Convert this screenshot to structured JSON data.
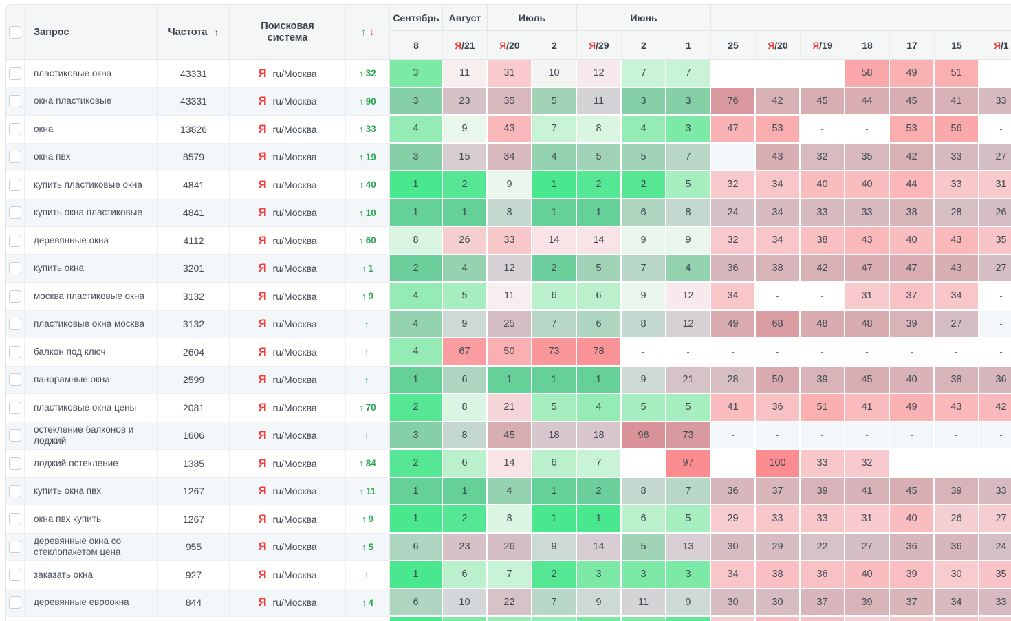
{
  "icons": {
    "yandex": "Я",
    "sort_asc": "↑",
    "arrow_up": "↑",
    "arrow_down": "↓",
    "dash": "-"
  },
  "colors": {
    "green_accent": "#28a750",
    "red_accent": "#f43b3b",
    "best_position": "#4ae88e",
    "worst_position": "#fb8c8f",
    "stripe_row": "#f4f7f9"
  },
  "table": {
    "header": {
      "query": "Запрос",
      "frequency": "Частота",
      "engine": "Поисковая система"
    },
    "months": [
      {
        "label": "Сентябрь",
        "span": 1
      },
      {
        "label": "Август",
        "span": 1
      },
      {
        "label": "Июль",
        "span": 2
      },
      {
        "label": "Июнь",
        "span": 3
      },
      {
        "label": "",
        "span": 7
      }
    ],
    "dates": [
      {
        "ya": false,
        "day": "8"
      },
      {
        "ya": true,
        "day": "21"
      },
      {
        "ya": true,
        "day": "20"
      },
      {
        "ya": false,
        "day": "2"
      },
      {
        "ya": true,
        "day": "29"
      },
      {
        "ya": false,
        "day": "2"
      },
      {
        "ya": false,
        "day": "1"
      },
      {
        "ya": false,
        "day": "25"
      },
      {
        "ya": true,
        "day": "20"
      },
      {
        "ya": true,
        "day": "19"
      },
      {
        "ya": false,
        "day": "18"
      },
      {
        "ya": false,
        "day": "17"
      },
      {
        "ya": false,
        "day": "15"
      },
      {
        "ya": true,
        "day": "1"
      }
    ],
    "engine_label": "ru/Москва",
    "rows": [
      {
        "query": "пластиковые окна",
        "frequency": "43331",
        "change": "32",
        "positions": [
          "3",
          "11",
          "31",
          "10",
          "12",
          "7",
          "7",
          "-",
          "-",
          "-",
          "58",
          "49",
          "51",
          "-"
        ]
      },
      {
        "query": "окна пластиковые",
        "frequency": "43331",
        "change": "90",
        "positions": [
          "3",
          "23",
          "35",
          "5",
          "11",
          "3",
          "3",
          "76",
          "42",
          "45",
          "44",
          "45",
          "41",
          "33"
        ]
      },
      {
        "query": "окна",
        "frequency": "13826",
        "change": "33",
        "positions": [
          "4",
          "9",
          "43",
          "7",
          "8",
          "4",
          "3",
          "47",
          "53",
          "-",
          "-",
          "53",
          "56",
          "-"
        ]
      },
      {
        "query": "окна пвх",
        "frequency": "8579",
        "change": "19",
        "positions": [
          "3",
          "15",
          "34",
          "4",
          "5",
          "5",
          "7",
          "-",
          "43",
          "32",
          "35",
          "42",
          "33",
          "27"
        ]
      },
      {
        "query": "купить пластиковые окна",
        "frequency": "4841",
        "change": "40",
        "positions": [
          "1",
          "2",
          "9",
          "1",
          "2",
          "2",
          "5",
          "32",
          "34",
          "40",
          "40",
          "44",
          "33",
          "31"
        ]
      },
      {
        "query": "купить окна пластиковые",
        "frequency": "4841",
        "change": "10",
        "positions": [
          "1",
          "1",
          "8",
          "1",
          "1",
          "6",
          "8",
          "24",
          "34",
          "33",
          "33",
          "38",
          "28",
          "26"
        ]
      },
      {
        "query": "деревянные окна",
        "frequency": "4112",
        "change": "60",
        "positions": [
          "8",
          "26",
          "33",
          "14",
          "14",
          "9",
          "9",
          "32",
          "34",
          "38",
          "43",
          "40",
          "43",
          "35"
        ]
      },
      {
        "query": "купить окна",
        "frequency": "3201",
        "change": "1",
        "positions": [
          "2",
          "4",
          "12",
          "2",
          "5",
          "7",
          "4",
          "36",
          "38",
          "42",
          "47",
          "47",
          "43",
          "27"
        ]
      },
      {
        "query": "москва пластиковые окна",
        "frequency": "3132",
        "change": "9",
        "positions": [
          "4",
          "5",
          "11",
          "6",
          "6",
          "9",
          "12",
          "34",
          "-",
          "-",
          "31",
          "37",
          "34",
          "-"
        ]
      },
      {
        "query": "пластиковые окна москва",
        "frequency": "3132",
        "change": "",
        "positions": [
          "4",
          "9",
          "25",
          "7",
          "6",
          "8",
          "12",
          "49",
          "68",
          "48",
          "48",
          "39",
          "27",
          "-"
        ]
      },
      {
        "query": "балкон под ключ",
        "frequency": "2604",
        "change": "",
        "positions": [
          "4",
          "67",
          "50",
          "73",
          "78",
          "-",
          "-",
          "-",
          "-",
          "-",
          "-",
          "-",
          "-",
          "-"
        ]
      },
      {
        "query": "панорамные окна",
        "frequency": "2599",
        "change": "",
        "positions": [
          "1",
          "6",
          "1",
          "1",
          "1",
          "9",
          "21",
          "28",
          "50",
          "39",
          "45",
          "40",
          "38",
          "36"
        ]
      },
      {
        "query": "пластиковые окна цены",
        "frequency": "2081",
        "change": "70",
        "positions": [
          "2",
          "8",
          "21",
          "5",
          "4",
          "5",
          "5",
          "41",
          "36",
          "51",
          "41",
          "49",
          "43",
          "42"
        ]
      },
      {
        "query": "остекление балконов и лоджий",
        "frequency": "1606",
        "change": "",
        "positions": [
          "3",
          "8",
          "45",
          "18",
          "18",
          "96",
          "73",
          "-",
          "-",
          "-",
          "-",
          "-",
          "-",
          "-"
        ]
      },
      {
        "query": "лоджий остекление",
        "frequency": "1385",
        "change": "84",
        "positions": [
          "2",
          "6",
          "14",
          "6",
          "7",
          "-",
          "97",
          "-",
          "100",
          "33",
          "32",
          "-",
          "-",
          "-"
        ]
      },
      {
        "query": "купить окна пвх",
        "frequency": "1267",
        "change": "11",
        "positions": [
          "1",
          "1",
          "4",
          "1",
          "2",
          "8",
          "7",
          "36",
          "37",
          "39",
          "41",
          "45",
          "39",
          "33"
        ]
      },
      {
        "query": "окна пвх купить",
        "frequency": "1267",
        "change": "9",
        "positions": [
          "1",
          "2",
          "8",
          "1",
          "1",
          "6",
          "5",
          "29",
          "33",
          "33",
          "31",
          "40",
          "26",
          "27"
        ]
      },
      {
        "query": "деревянные окна со стеклопакетом цена",
        "frequency": "955",
        "change": "5",
        "positions": [
          "6",
          "23",
          "26",
          "9",
          "14",
          "5",
          "13",
          "30",
          "29",
          "22",
          "27",
          "36",
          "36",
          "24"
        ]
      },
      {
        "query": "заказать окна",
        "frequency": "927",
        "change": "",
        "positions": [
          "1",
          "6",
          "7",
          "2",
          "3",
          "3",
          "3",
          "34",
          "38",
          "36",
          "40",
          "39",
          "30",
          "35"
        ]
      },
      {
        "query": "деревянные евроокна",
        "frequency": "844",
        "change": "4",
        "positions": [
          "6",
          "10",
          "22",
          "7",
          "9",
          "11",
          "9",
          "30",
          "30",
          "37",
          "39",
          "37",
          "34",
          "33"
        ]
      }
    ],
    "partial_row_colors": [
      "#4be98e",
      "#7feaa8",
      "#98ecb5",
      "#94ebb3",
      "#79e8a3",
      "#83e9aa",
      "#60e698",
      "#f6cdd0",
      "#f9bdc0",
      "#f8c2c4",
      "#f4d2d5",
      "#f7c8ca",
      "#f8c3c6",
      "#f5cbce"
    ]
  }
}
